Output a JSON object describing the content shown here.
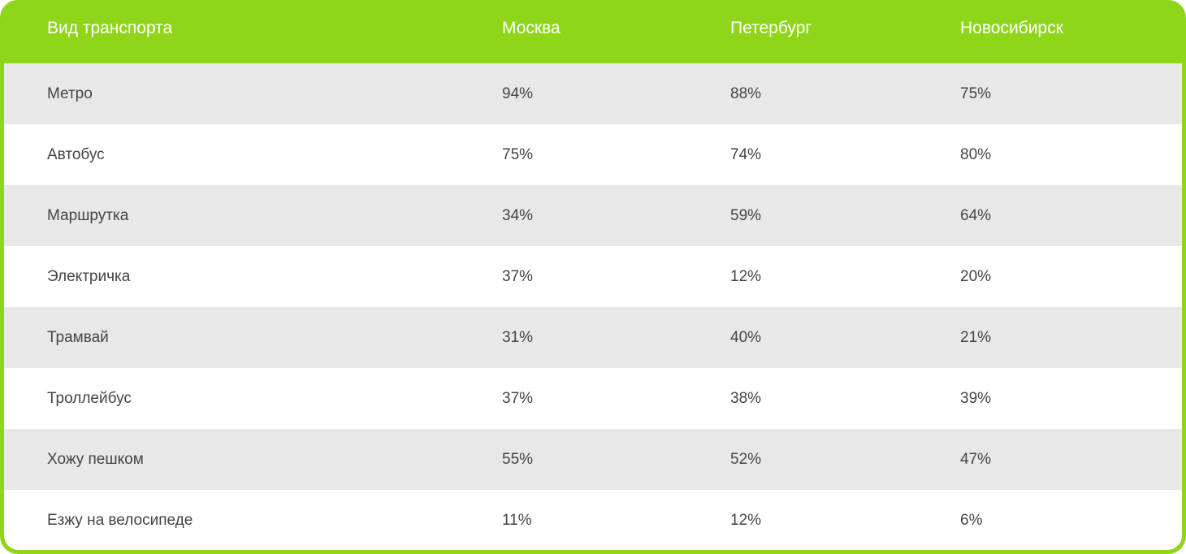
{
  "chart_data": {
    "type": "table",
    "columns": [
      "Вид транспорта",
      "Москва",
      "Петербург",
      "Новосибирск"
    ],
    "rows": [
      {
        "label": "Метро",
        "values": [
          "94%",
          "88%",
          "75%"
        ]
      },
      {
        "label": "Автобус",
        "values": [
          "75%",
          "74%",
          "80%"
        ]
      },
      {
        "label": "Маршрутка",
        "values": [
          "34%",
          "59%",
          "64%"
        ]
      },
      {
        "label": "Электричка",
        "values": [
          "37%",
          "12%",
          "20%"
        ]
      },
      {
        "label": "Трамвай",
        "values": [
          "31%",
          "40%",
          "21%"
        ]
      },
      {
        "label": "Троллейбус",
        "values": [
          "37%",
          "38%",
          "39%"
        ]
      },
      {
        "label": "Хожу пешком",
        "values": [
          "55%",
          "52%",
          "47%"
        ]
      },
      {
        "label": "Езжу на велосипеде",
        "values": [
          "11%",
          "12%",
          "6%"
        ]
      }
    ]
  },
  "colors": {
    "accent": "#8fd61a",
    "header_text": "#ffffff",
    "row_alt": "#e8e8e8",
    "row_base": "#ffffff",
    "text": "#444444"
  }
}
